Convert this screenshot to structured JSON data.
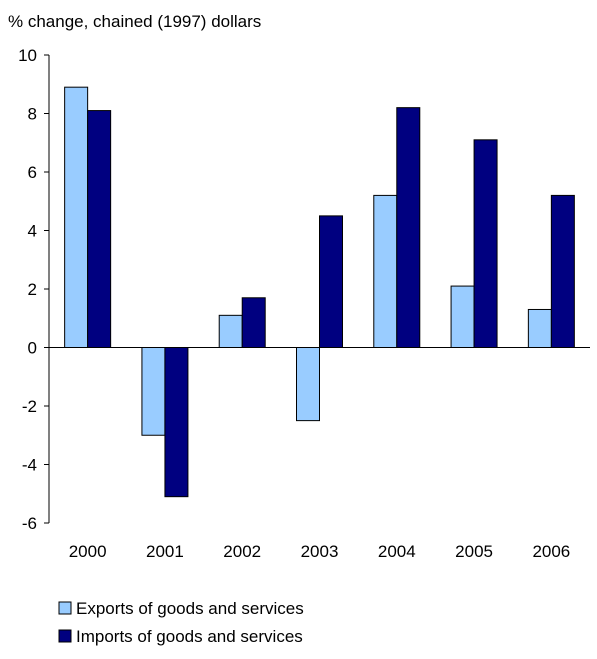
{
  "chart_data": {
    "type": "bar",
    "ylabel": "% change, chained (1997) dollars",
    "categories": [
      "2000",
      "2001",
      "2002",
      "2003",
      "2004",
      "2005",
      "2006"
    ],
    "ylim": [
      -6,
      10
    ],
    "yticks": [
      10,
      8,
      6,
      4,
      2,
      0,
      -2,
      -4,
      -6
    ],
    "grid": false,
    "legend_placement": "bottom-left",
    "series": [
      {
        "name": "Exports of goods and services",
        "color": "#99ccff",
        "values": [
          8.9,
          -3.0,
          1.1,
          -2.5,
          5.2,
          2.1,
          1.3
        ]
      },
      {
        "name": "Imports of goods and services",
        "color": "#000080",
        "values": [
          8.1,
          -5.1,
          1.7,
          4.5,
          8.2,
          7.1,
          5.2
        ]
      }
    ]
  }
}
